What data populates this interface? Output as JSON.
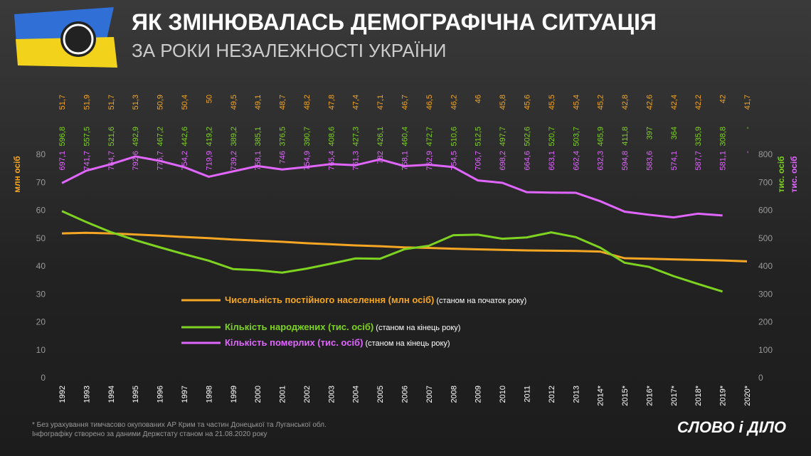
{
  "title": "ЯК ЗМІНЮВАЛАСЬ ДЕМОГРАФІЧНА СИТУАЦІЯ",
  "subtitle": "ЗА РОКИ НЕЗАЛЕЖНОСТІ УКРАЇНИ",
  "footnotes": [
    "* Без урахування тимчасово окупованих АР Крим та частин Донецької та Луганської обл.",
    "Інфографіку створено за даними Держстату станом на 21.08.2020 року"
  ],
  "logo": "СЛОВО і ДІЛО",
  "chart_data": {
    "type": "line",
    "categories": [
      "1992",
      "1993",
      "1994",
      "1995",
      "1996",
      "1997",
      "1998",
      "1999",
      "2000",
      "2001",
      "2002",
      "2003",
      "2004",
      "2005",
      "2006",
      "2007",
      "2008",
      "2009",
      "2010",
      "2011",
      "2012",
      "2013",
      "2014*",
      "2015*",
      "2016*",
      "2017*",
      "2018*",
      "2019*",
      "2020*"
    ],
    "ylim": [
      0,
      80
    ],
    "yticks": [
      0,
      10,
      20,
      30,
      40,
      50,
      60,
      70,
      80
    ],
    "ylabel": "млн осіб",
    "y2lim": [
      0,
      800
    ],
    "y2ticks": [
      0,
      100,
      200,
      300,
      400,
      500,
      600,
      700,
      800
    ],
    "y2labels": [
      "тис. осіб",
      "тис. осіб"
    ],
    "series": [
      {
        "name": "Чисельність постійного населення (млн осіб)",
        "note": "(станом на початок року)",
        "color": "#f5a623",
        "values": [
          51.7,
          51.9,
          51.7,
          51.3,
          50.9,
          50.4,
          50,
          49.5,
          49.1,
          48.7,
          48.2,
          47.8,
          47.4,
          47.1,
          46.7,
          46.5,
          46.2,
          46,
          45.8,
          45.6,
          45.5,
          45.4,
          45.2,
          42.8,
          42.6,
          42.4,
          42.2,
          42,
          41.7
        ],
        "value_labels": [
          "51,7",
          "51,9",
          "51,7",
          "51,3",
          "50,9",
          "50,4",
          "50",
          "49,5",
          "49,1",
          "48,7",
          "48,2",
          "47,8",
          "47,4",
          "47,1",
          "46,7",
          "46,5",
          "46,2",
          "46",
          "45,8",
          "45,6",
          "45,5",
          "45,4",
          "45,2",
          "42,8",
          "42,6",
          "42,4",
          "42,2",
          "42",
          "41,7"
        ]
      },
      {
        "name": "Кількість народжених (тис. осіб)",
        "note": "(станом на кінець року)",
        "color": "#7ed321",
        "axis": "y2",
        "values": [
          596.8,
          557.5,
          521.6,
          492.9,
          467.2,
          442.6,
          419.2,
          389.2,
          385.1,
          376.5,
          390.7,
          408.6,
          427.3,
          426.1,
          460.4,
          472.7,
          510.6,
          512.5,
          497.7,
          502.6,
          520.7,
          503.7,
          465.9,
          411.8,
          397,
          364,
          335.9,
          308.8,
          null
        ],
        "value_labels": [
          "596,8",
          "557,5",
          "521,6",
          "492,9",
          "467,2",
          "442,6",
          "419,2",
          "389,2",
          "385,1",
          "376,5",
          "390,7",
          "408,6",
          "427,3",
          "426,1",
          "460,4",
          "472,7",
          "510,6",
          "512,5",
          "497,7",
          "502,6",
          "520,7",
          "503,7",
          "465,9",
          "411,8",
          "397",
          "364",
          "335,9",
          "308,8",
          "-"
        ]
      },
      {
        "name": "Кількість померлих (тис. осіб)",
        "note": "(станом на кінець року)",
        "color": "#e066ff",
        "axis": "y2",
        "values": [
          697.1,
          741.7,
          764.7,
          792.6,
          776.7,
          754.2,
          719.9,
          739.2,
          758.1,
          746,
          754.9,
          765.4,
          761.3,
          782,
          758.1,
          762.9,
          754.5,
          706.7,
          698.2,
          664.6,
          663.1,
          662.4,
          632.3,
          594.8,
          583.6,
          574.1,
          587.7,
          581.1,
          null
        ],
        "value_labels": [
          "697,1",
          "741,7",
          "764,7",
          "792,6",
          "776,7",
          "754,2",
          "719,9",
          "739,2",
          "758,1",
          "746",
          "754,9",
          "765,4",
          "761,3",
          "782",
          "758,1",
          "762,9",
          "754,5",
          "706,7",
          "698,2",
          "664,6",
          "663,1",
          "662,4",
          "632,3",
          "594,8",
          "583,6",
          "574,1",
          "587,7",
          "581,1",
          "-"
        ]
      }
    ]
  }
}
